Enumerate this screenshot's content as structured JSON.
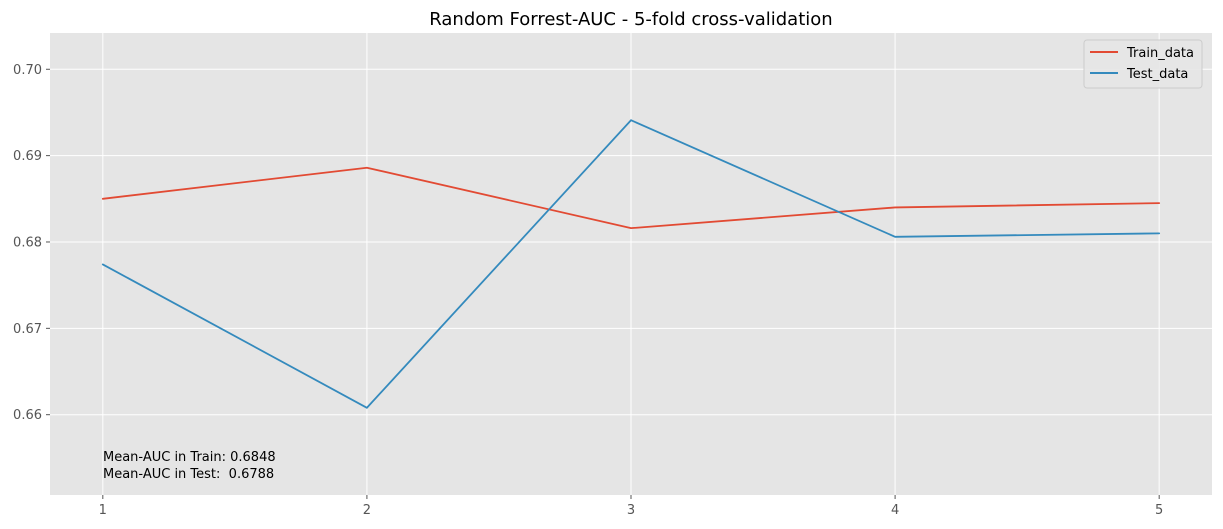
{
  "chart_data": {
    "type": "line",
    "title": "Random Forrest-AUC - 5-fold cross-validation",
    "xlabel": "",
    "ylabel": "",
    "x": [
      1,
      2,
      3,
      4,
      5
    ],
    "x_tick_labels": [
      "1",
      "2",
      "3",
      "4",
      "5"
    ],
    "xlim": [
      0.8,
      5.2
    ],
    "ylim": [
      0.6507,
      0.7042
    ],
    "y_ticks": [
      0.66,
      0.67,
      0.68,
      0.69,
      0.7
    ],
    "y_tick_labels": [
      "0.66",
      "0.67",
      "0.68",
      "0.69",
      "0.70"
    ],
    "grid": true,
    "legend_position": "top-right",
    "series": [
      {
        "name": "Train_data",
        "color": "#E24A33",
        "values": [
          0.685,
          0.6886,
          0.6816,
          0.684,
          0.6845
        ]
      },
      {
        "name": "Test_data",
        "color": "#348ABD",
        "values": [
          0.6774,
          0.6608,
          0.6941,
          0.6806,
          0.681
        ]
      }
    ],
    "annotations": [
      "Mean-AUC in Train: 0.6848",
      "Mean-AUC in Test:  0.6788"
    ]
  },
  "colors": {
    "plot_background": "#E5E5E5",
    "grid": "#FFFFFF"
  }
}
